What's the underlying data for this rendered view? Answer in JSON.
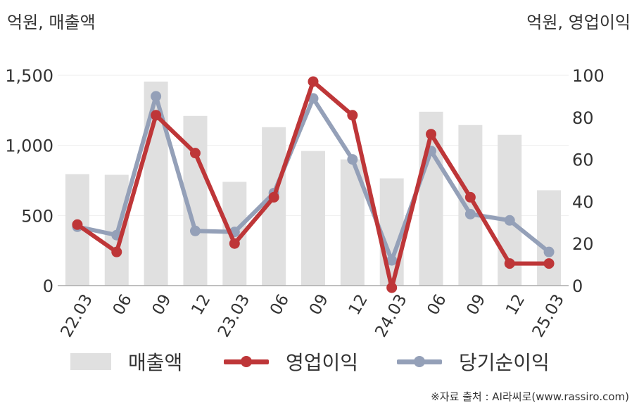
{
  "units": {
    "left": "억원, 매출액",
    "right": "억원, 영업이익"
  },
  "source": "※자료 출처 : AI라씨로(www.rassiro.com)",
  "colors": {
    "revenue": "#e0e0e0",
    "operating_profit": "#be3638",
    "net_income": "#94a0b8"
  },
  "chart_data": {
    "type": "bar",
    "categories": [
      "22.03",
      "06",
      "09",
      "12",
      "23.03",
      "06",
      "09",
      "12",
      "24.03",
      "06",
      "09",
      "12",
      "25.03"
    ],
    "left_axis": {
      "ylim": [
        0,
        1500
      ],
      "ticks": [
        "0",
        "500",
        "1,000",
        "1,500"
      ],
      "tick_values": [
        0,
        500,
        1000,
        1500
      ]
    },
    "right_axis": {
      "ylim": [
        0,
        100
      ],
      "ticks": [
        "0",
        "20",
        "40",
        "60",
        "80",
        "100"
      ],
      "tick_values": [
        0,
        20,
        40,
        60,
        80,
        100
      ]
    },
    "series": [
      {
        "name": "매출액",
        "type": "bar",
        "axis": "left",
        "color": "#e0e0e0",
        "values": [
          795,
          790,
          1455,
          1210,
          740,
          1130,
          960,
          900,
          765,
          1240,
          1145,
          1075,
          680
        ]
      },
      {
        "name": "영업이익",
        "type": "line",
        "axis": "right",
        "color": "#be3638",
        "values": [
          29,
          16,
          81,
          63,
          20,
          42,
          97,
          81,
          -1,
          72,
          42,
          10.5,
          10.5
        ]
      },
      {
        "name": "당기순이익",
        "type": "line",
        "axis": "right",
        "color": "#94a0b8",
        "values": [
          28,
          24,
          90,
          26,
          25.5,
          44,
          89,
          60,
          12,
          64,
          34,
          31,
          16
        ]
      }
    ],
    "grid": true,
    "legend": "bottom"
  }
}
